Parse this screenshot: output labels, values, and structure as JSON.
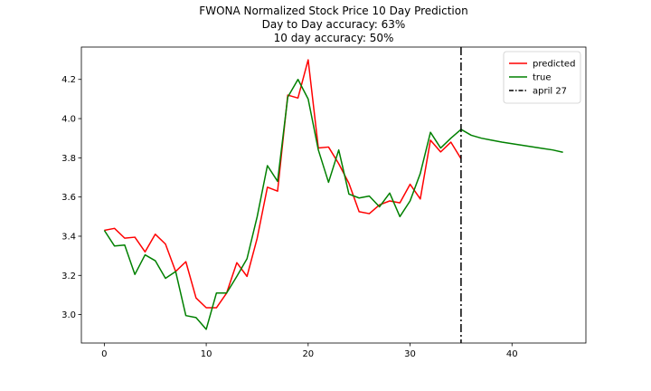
{
  "chart_data": {
    "type": "line",
    "title_lines": [
      "FWONA Normalized Stock Price 10 Day Prediction",
      "Day to Day accuracy: 63%",
      "10 day accuracy: 50%"
    ],
    "xlabel": "",
    "ylabel": "",
    "xlim": [
      -2.25,
      47.25
    ],
    "ylim": [
      2.855,
      4.365
    ],
    "xticks": [
      0,
      10,
      20,
      30,
      40
    ],
    "yticks": [
      3.0,
      3.2,
      3.4,
      3.6,
      3.8,
      4.0,
      4.2
    ],
    "ytick_labels": [
      "3.0",
      "3.2",
      "3.4",
      "3.6",
      "3.8",
      "4.0",
      "4.2"
    ],
    "grid": false,
    "legend_position": "top-right",
    "series": [
      {
        "name": "predicted",
        "color": "#ff0000",
        "x": [
          0,
          1,
          2,
          3,
          4,
          5,
          6,
          7,
          8,
          9,
          10,
          11,
          12,
          13,
          14,
          15,
          16,
          17,
          18,
          19,
          20,
          21,
          22,
          23,
          24,
          25,
          26,
          27,
          28,
          29,
          30,
          31,
          32,
          33,
          34,
          35
        ],
        "y": [
          3.43,
          3.44,
          3.39,
          3.395,
          3.32,
          3.41,
          3.36,
          3.22,
          3.27,
          3.085,
          3.035,
          3.035,
          3.11,
          3.265,
          3.195,
          3.39,
          3.65,
          3.63,
          4.12,
          4.105,
          4.3,
          3.85,
          3.855,
          3.77,
          3.67,
          3.525,
          3.515,
          3.56,
          3.58,
          3.57,
          3.665,
          3.59,
          3.89,
          3.83,
          3.88,
          3.795
        ]
      },
      {
        "name": "true",
        "color": "#008000",
        "x": [
          0,
          1,
          2,
          3,
          4,
          5,
          6,
          7,
          8,
          9,
          10,
          11,
          12,
          13,
          14,
          15,
          16,
          17,
          18,
          19,
          20,
          21,
          22,
          23,
          24,
          25,
          26,
          27,
          28,
          29,
          30,
          31,
          32,
          33,
          34,
          35,
          36,
          37,
          38,
          39,
          40,
          41,
          42,
          43,
          44,
          45
        ],
        "y": [
          3.43,
          3.35,
          3.355,
          3.205,
          3.305,
          3.275,
          3.185,
          3.22,
          2.995,
          2.985,
          2.925,
          3.11,
          3.11,
          3.195,
          3.285,
          3.5,
          3.76,
          3.68,
          4.11,
          4.2,
          4.1,
          3.84,
          3.675,
          3.84,
          3.615,
          3.595,
          3.605,
          3.55,
          3.62,
          3.5,
          3.58,
          3.72,
          3.93,
          3.85,
          3.9,
          3.945,
          3.915,
          3.9,
          3.89,
          3.88,
          3.872,
          3.864,
          3.856,
          3.848,
          3.84,
          3.828
        ]
      }
    ],
    "vlines": [
      {
        "name": "april 27",
        "x": 35,
        "color": "#000000",
        "style": "dashdot"
      }
    ]
  }
}
